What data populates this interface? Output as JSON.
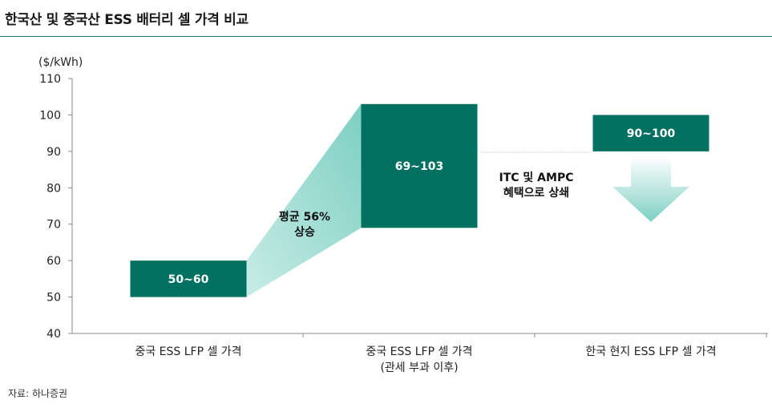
{
  "title": "한국산 및 중국산 ESS 배터리 셀 가격 비교",
  "source": "자료: 하나증권",
  "colors": {
    "bar": "#007060",
    "accent_light": "#b9e6df",
    "axis": "#8a8a8a",
    "title_rule": "#1f6f7a"
  },
  "chart_data": {
    "type": "bar",
    "subtype": "floating-range",
    "unit_label": "($/kWh)",
    "ylim": [
      40,
      110
    ],
    "yticks": [
      40,
      50,
      60,
      70,
      80,
      90,
      100,
      110
    ],
    "grid": false,
    "categories": [
      [
        "중국 ESS LFP 셀 가격"
      ],
      [
        "중국 ESS LFP 셀 가격",
        "(관세 부과 이후)"
      ],
      [
        "한국 현지 ESS LFP 셀 가격"
      ]
    ],
    "series": [
      {
        "ranges": [
          [
            50,
            60
          ],
          [
            69,
            103
          ],
          [
            90,
            100
          ]
        ],
        "labels": [
          "50~60",
          "69~103",
          "90~100"
        ]
      }
    ],
    "annotations": {
      "increase": [
        "평균 56%",
        "상승"
      ],
      "subsidy": [
        "ITC 및 AMPC",
        "혜택으로 상쇄"
      ]
    }
  }
}
